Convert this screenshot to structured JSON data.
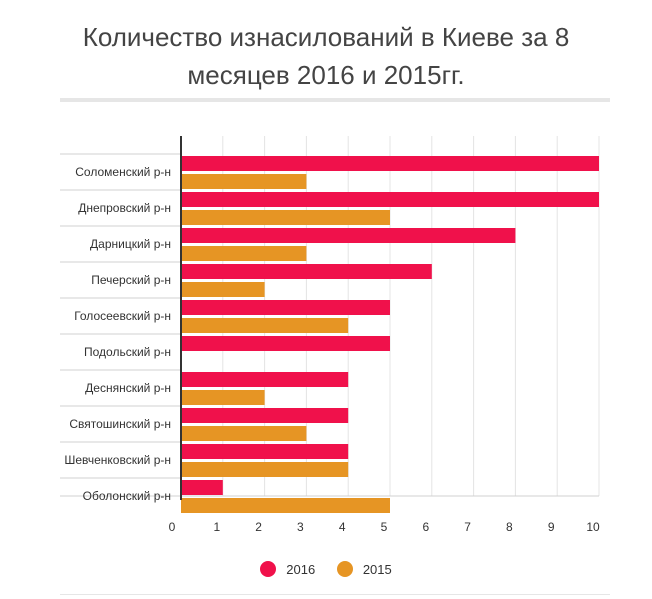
{
  "chart_data": {
    "type": "bar",
    "orientation": "horizontal",
    "title": "Количество изнасилований в Киеве за 8 месяцев 2016 и 2015гг.",
    "title_lines": [
      "Количество изнасилований в Киеве за 8",
      "месяцев 2016 и 2015гг."
    ],
    "categories": [
      "Соломенский р-н",
      "Днепровский р-н",
      "Дарницкий р-н",
      "Печерский р-н",
      "Голосеевский р-н",
      "Подольский р-н",
      "Деснянский р-н",
      "Святошинский р-н",
      "Шевченковский р-н",
      "Оболонский р-н"
    ],
    "series": [
      {
        "name": "2016",
        "color": "#f0114b",
        "values": [
          10,
          10,
          8,
          6,
          5,
          5,
          4,
          4,
          4,
          1
        ]
      },
      {
        "name": "2015",
        "color": "#e69524",
        "values": [
          3,
          5,
          3,
          2,
          4,
          0,
          2,
          3,
          4,
          5
        ]
      }
    ],
    "xlim": [
      0,
      10
    ],
    "xticks": [
      "0",
      "1",
      "2",
      "3",
      "4",
      "5",
      "6",
      "7",
      "8",
      "9",
      "10"
    ],
    "xlabel": "",
    "ylabel": "",
    "grid": true,
    "legend_position": "bottom"
  }
}
